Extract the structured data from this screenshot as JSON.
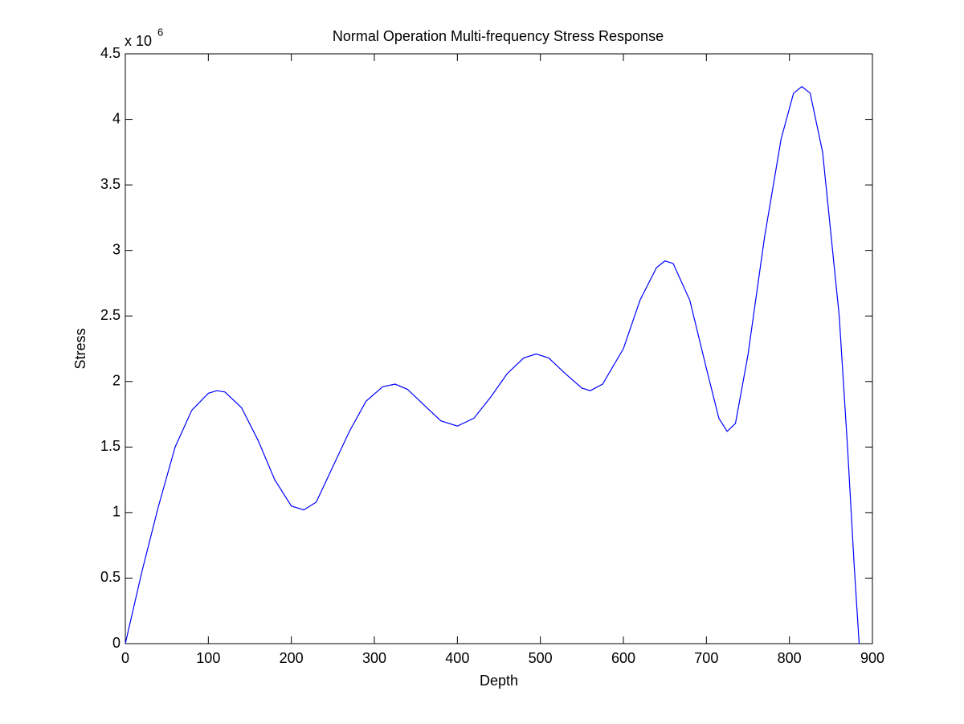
{
  "chart_data": {
    "type": "line",
    "title": "Normal Operation Multi-frequency Stress Response",
    "x_label": "Depth",
    "y_label": "Stress",
    "y_multiplier": "x 10",
    "y_multiplier_exponent": "6",
    "x": [
      0,
      20,
      40,
      60,
      80,
      100,
      110,
      120,
      140,
      160,
      180,
      200,
      215,
      230,
      250,
      270,
      290,
      310,
      325,
      340,
      360,
      380,
      400,
      420,
      440,
      460,
      480,
      495,
      510,
      530,
      550,
      560,
      575,
      600,
      620,
      640,
      650,
      660,
      680,
      700,
      715,
      725,
      735,
      750,
      770,
      790,
      805,
      815,
      825,
      840,
      860,
      870,
      878,
      884
    ],
    "series": [
      {
        "name": "Stress",
        "color": "#0000ff",
        "values": [
          0,
          0.55,
          1.05,
          1.5,
          1.78,
          1.91,
          1.93,
          1.92,
          1.8,
          1.55,
          1.25,
          1.05,
          1.02,
          1.08,
          1.35,
          1.62,
          1.85,
          1.96,
          1.98,
          1.94,
          1.82,
          1.7,
          1.66,
          1.72,
          1.88,
          2.06,
          2.18,
          2.21,
          2.18,
          2.06,
          1.95,
          1.93,
          1.98,
          2.25,
          2.62,
          2.87,
          2.92,
          2.9,
          2.62,
          2.1,
          1.72,
          1.62,
          1.68,
          2.2,
          3.1,
          3.85,
          4.2,
          4.25,
          4.2,
          3.75,
          2.5,
          1.5,
          0.6,
          0
        ]
      }
    ],
    "xlim": [
      0,
      900
    ],
    "xticks": [
      0,
      100,
      200,
      300,
      400,
      500,
      600,
      700,
      800,
      900
    ],
    "ylim": [
      0,
      4.5
    ],
    "yticks": [
      0,
      0.5,
      1,
      1.5,
      2,
      2.5,
      3,
      3.5,
      4,
      4.5
    ],
    "grid": false
  }
}
